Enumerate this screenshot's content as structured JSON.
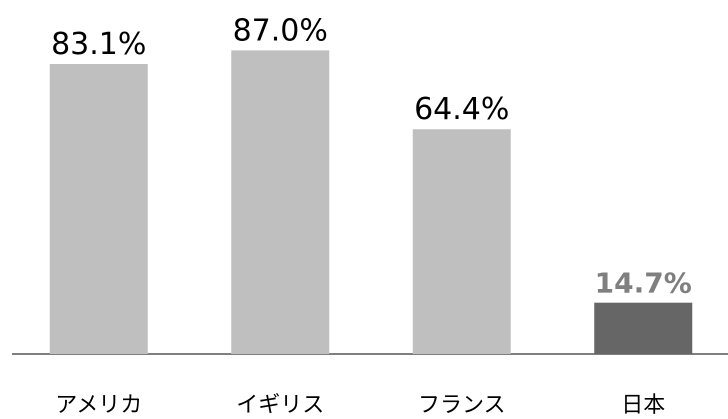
{
  "chart_data": {
    "type": "bar",
    "categories": [
      "アメリカ",
      "イギリス",
      "フランス",
      "日本"
    ],
    "values": [
      83.1,
      87.0,
      64.4,
      14.7
    ],
    "value_labels": [
      "83.1%",
      "87.0%",
      "64.4%",
      "14.7%"
    ],
    "colors": [
      "#bfbfbf",
      "#bfbfbf",
      "#bfbfbf",
      "#666666"
    ],
    "label_colors": [
      "#000000",
      "#000000",
      "#000000",
      "#7f7f7f"
    ],
    "label_bold": [
      false,
      false,
      false,
      true
    ]
  }
}
